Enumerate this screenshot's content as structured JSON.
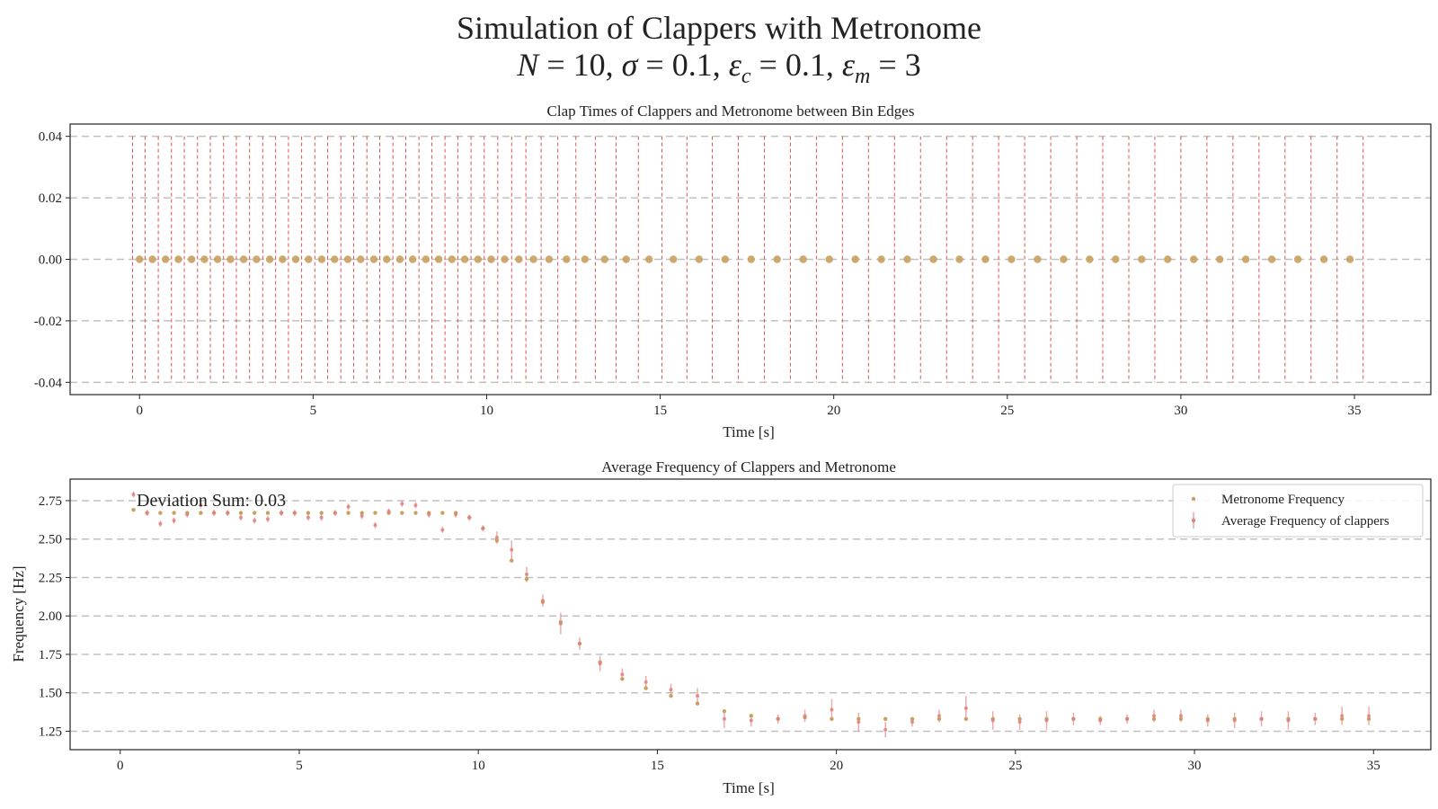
{
  "figure": {
    "title_line1": "Simulation of Clappers with Metronome",
    "title_math": {
      "N": "10",
      "sigma": "0.1",
      "eps_c": "0.1",
      "eps_m": "3"
    }
  },
  "colors": {
    "clap_marker": "#c8a060",
    "bin_edge": "#d9534f",
    "grid": "#c0c0c0",
    "metronome": "#c8a060",
    "clappers": "#e08080"
  },
  "chart_data": [
    {
      "type": "scatter",
      "title": "Clap Times of Clappers and Metronome between Bin Edges",
      "xlabel": "Time [s]",
      "ylabel": "",
      "xlim": [
        -2,
        37.2
      ],
      "ylim": [
        -0.044,
        0.044
      ],
      "xticks": [
        0,
        5,
        10,
        15,
        20,
        25,
        30,
        35
      ],
      "yticks": [
        0.04,
        0.02,
        0.0,
        -0.02,
        -0.04
      ],
      "ytick_labels": [
        "0.04",
        "0.02",
        "0.00",
        "-0.02",
        "-0.04"
      ],
      "grid": "horizontal dashed",
      "bin_edges": [
        -0.2,
        0.16,
        0.54,
        0.92,
        1.29,
        1.67,
        2.04,
        2.42,
        2.79,
        3.17,
        3.55,
        3.92,
        4.29,
        4.67,
        5.05,
        5.42,
        5.8,
        6.17,
        6.55,
        6.92,
        7.3,
        7.67,
        8.05,
        8.42,
        8.8,
        9.17,
        9.55,
        9.93,
        10.32,
        10.72,
        11.13,
        11.57,
        12.05,
        12.57,
        13.13,
        13.73,
        14.37,
        15.05,
        15.77,
        16.5,
        17.25,
        18.0,
        18.75,
        19.5,
        20.25,
        21.0,
        21.75,
        22.5,
        23.25,
        24.0,
        24.75,
        25.5,
        26.25,
        27.0,
        27.75,
        28.5,
        29.25,
        30.0,
        30.75,
        31.5,
        32.25,
        33.0,
        33.75,
        34.5,
        35.25
      ],
      "clap_times": [
        0.0,
        0.37,
        0.75,
        1.12,
        1.5,
        1.87,
        2.25,
        2.62,
        3.0,
        3.37,
        3.75,
        4.12,
        4.5,
        4.87,
        5.25,
        5.62,
        6.0,
        6.37,
        6.75,
        7.12,
        7.5,
        7.87,
        8.25,
        8.62,
        9.0,
        9.37,
        9.75,
        10.13,
        10.52,
        10.93,
        11.35,
        11.8,
        12.3,
        12.83,
        13.4,
        14.02,
        14.68,
        15.38,
        16.12,
        16.87,
        17.62,
        18.37,
        19.12,
        19.87,
        20.62,
        21.37,
        22.12,
        22.87,
        23.62,
        24.37,
        25.12,
        25.87,
        26.62,
        27.37,
        28.12,
        28.87,
        29.62,
        30.37,
        31.12,
        31.87,
        32.62,
        33.37,
        34.12,
        34.87
      ],
      "clap_values": 0.0
    },
    {
      "type": "scatter",
      "title": "Average Frequency of Clappers and Metronome",
      "xlabel": "Time [s]",
      "ylabel": "Frequency [Hz]",
      "xlim": [
        -1.4,
        36.6
      ],
      "ylim": [
        1.13,
        2.89
      ],
      "xticks": [
        0,
        5,
        10,
        15,
        20,
        25,
        30,
        35
      ],
      "yticks": [
        1.25,
        1.5,
        1.75,
        2.0,
        2.25,
        2.5,
        2.75
      ],
      "ytick_labels": [
        "1.25",
        "1.50",
        "1.75",
        "2.00",
        "2.25",
        "2.50",
        "2.75"
      ],
      "grid": "horizontal dashed",
      "legend_position": "top-right",
      "annotation": "Deviation Sum: 0.03",
      "series": [
        {
          "name": "Metronome Frequency",
          "x": [
            0.37,
            0.75,
            1.12,
            1.5,
            1.87,
            2.25,
            2.62,
            3.0,
            3.37,
            3.75,
            4.12,
            4.5,
            4.87,
            5.25,
            5.62,
            6.0,
            6.37,
            6.75,
            7.12,
            7.5,
            7.87,
            8.25,
            8.62,
            9.0,
            9.37,
            9.75,
            10.13,
            10.52,
            10.93,
            11.35,
            11.8,
            12.3,
            12.83,
            13.4,
            14.02,
            14.68,
            15.38,
            16.12,
            16.87,
            17.62,
            18.37,
            19.12,
            19.87,
            20.62,
            21.37,
            22.12,
            22.87,
            23.62,
            24.37,
            25.12,
            25.87,
            26.62,
            27.37,
            28.12,
            28.87,
            29.62,
            30.37,
            31.12,
            31.87,
            32.62,
            33.37,
            34.12,
            34.87
          ],
          "y": [
            2.69,
            2.67,
            2.67,
            2.67,
            2.67,
            2.67,
            2.67,
            2.67,
            2.67,
            2.67,
            2.67,
            2.67,
            2.67,
            2.67,
            2.67,
            2.67,
            2.67,
            2.67,
            2.67,
            2.67,
            2.67,
            2.67,
            2.67,
            2.67,
            2.67,
            2.64,
            2.57,
            2.49,
            2.36,
            2.24,
            2.09,
            1.96,
            1.82,
            1.7,
            1.59,
            1.53,
            1.48,
            1.43,
            1.38,
            1.35,
            1.33,
            1.34,
            1.33,
            1.33,
            1.33,
            1.33,
            1.33,
            1.33,
            1.33,
            1.33,
            1.33,
            1.33,
            1.33,
            1.33,
            1.33,
            1.33,
            1.33,
            1.33,
            1.33,
            1.33,
            1.33,
            1.33,
            1.33
          ]
        },
        {
          "name": "Average Frequency of clappers",
          "x": [
            0.37,
            0.75,
            1.12,
            1.5,
            1.87,
            2.25,
            2.62,
            3.0,
            3.37,
            3.75,
            4.12,
            4.5,
            4.87,
            5.25,
            5.62,
            6.0,
            6.37,
            6.75,
            7.12,
            7.5,
            7.87,
            8.25,
            8.62,
            9.0,
            9.37,
            9.75,
            10.13,
            10.52,
            10.93,
            11.35,
            11.8,
            12.3,
            12.83,
            13.4,
            14.02,
            14.68,
            15.38,
            16.12,
            16.87,
            17.62,
            18.37,
            19.12,
            19.87,
            20.62,
            21.37,
            22.12,
            22.87,
            23.62,
            24.37,
            25.12,
            25.87,
            26.62,
            27.37,
            28.12,
            28.87,
            29.62,
            30.37,
            31.12,
            31.87,
            32.62,
            33.37,
            34.12,
            34.87
          ],
          "y": [
            2.79,
            2.67,
            2.6,
            2.62,
            2.66,
            2.72,
            2.67,
            2.67,
            2.64,
            2.62,
            2.63,
            2.67,
            2.67,
            2.64,
            2.64,
            2.67,
            2.71,
            2.65,
            2.59,
            2.68,
            2.73,
            2.72,
            2.66,
            2.56,
            2.66,
            2.64,
            2.57,
            2.51,
            2.43,
            2.27,
            2.1,
            1.95,
            1.82,
            1.69,
            1.62,
            1.57,
            1.52,
            1.48,
            1.33,
            1.32,
            1.33,
            1.35,
            1.39,
            1.31,
            1.26,
            1.31,
            1.35,
            1.4,
            1.32,
            1.31,
            1.32,
            1.33,
            1.32,
            1.33,
            1.35,
            1.35,
            1.32,
            1.32,
            1.33,
            1.32,
            1.33,
            1.35,
            1.35
          ],
          "err": [
            0.02,
            0.02,
            0.02,
            0.02,
            0.02,
            0.02,
            0.02,
            0.02,
            0.02,
            0.02,
            0.02,
            0.02,
            0.02,
            0.02,
            0.02,
            0.02,
            0.02,
            0.02,
            0.02,
            0.02,
            0.02,
            0.02,
            0.02,
            0.02,
            0.02,
            0.02,
            0.02,
            0.04,
            0.06,
            0.05,
            0.04,
            0.07,
            0.04,
            0.05,
            0.04,
            0.04,
            0.04,
            0.05,
            0.06,
            0.04,
            0.03,
            0.04,
            0.07,
            0.06,
            0.05,
            0.03,
            0.04,
            0.08,
            0.06,
            0.05,
            0.06,
            0.04,
            0.03,
            0.03,
            0.04,
            0.04,
            0.04,
            0.05,
            0.05,
            0.06,
            0.04,
            0.06,
            0.06
          ]
        }
      ]
    }
  ]
}
